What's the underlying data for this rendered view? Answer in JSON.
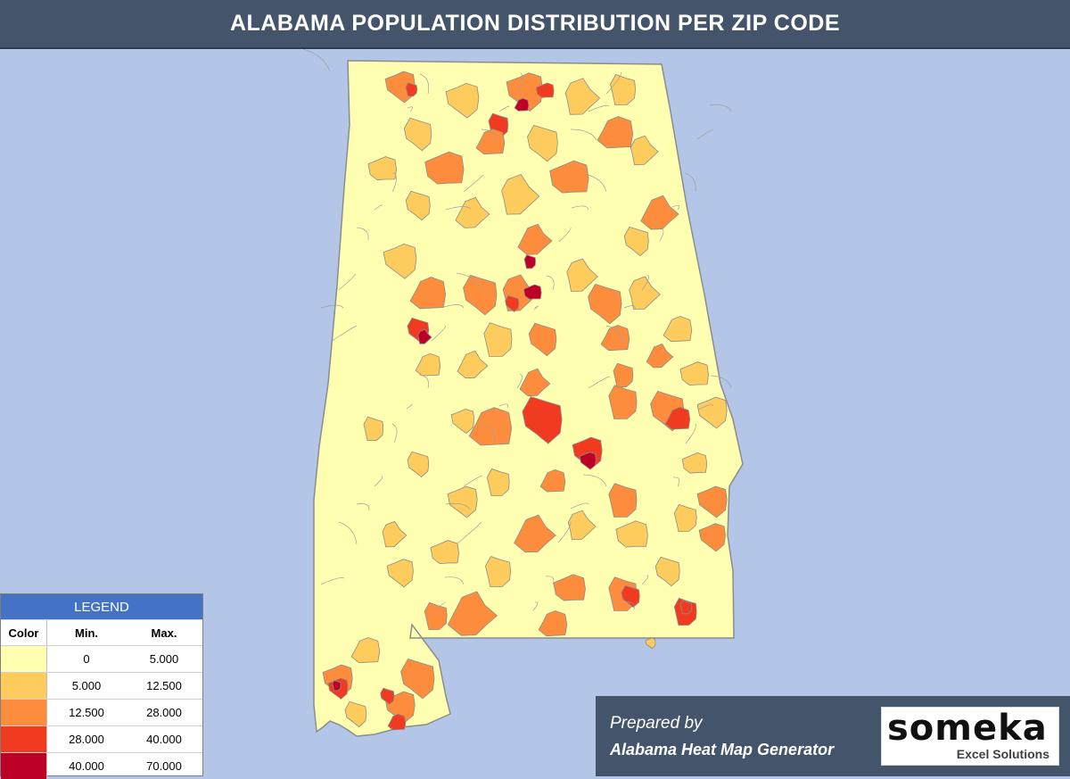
{
  "title": "ALABAMA POPULATION DISTRIBUTION PER ZIP CODE",
  "legend": {
    "title": "LEGEND",
    "headers": {
      "color": "Color",
      "min": "Min.",
      "max": "Max."
    },
    "bins": [
      {
        "color": "#ffffb2",
        "min": "0",
        "max": "5.000"
      },
      {
        "color": "#fecc5c",
        "min": "5.000",
        "max": "12.500"
      },
      {
        "color": "#fd8d3c",
        "min": "12.500",
        "max": "28.000"
      },
      {
        "color": "#f03b20",
        "min": "28.000",
        "max": "40.000"
      },
      {
        "color": "#bd0026",
        "min": "40.000",
        "max": "70.000"
      }
    ]
  },
  "footer": {
    "prepared_by": "Prepared by",
    "generator": "Alabama Heat Map Generator"
  },
  "logo": {
    "word": "someka",
    "sub": "Excel Solutions"
  },
  "colors": {
    "background": "#b3c6e7",
    "header": "#44546a",
    "legend_header": "#4472c4",
    "border": "#8c8c8c"
  }
}
